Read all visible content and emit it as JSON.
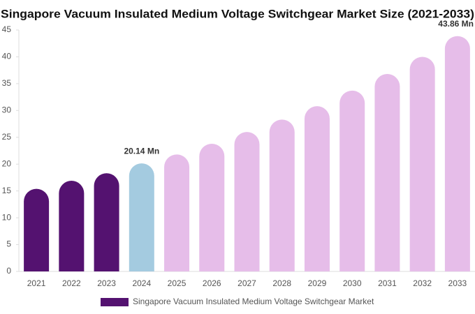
{
  "chart_data": {
    "type": "bar",
    "title": "Singapore Vacuum Insulated Medium Voltage Switchgear Market Size (2021-2033)",
    "categories": [
      "2021",
      "2022",
      "2023",
      "2024",
      "2025",
      "2026",
      "2027",
      "2028",
      "2029",
      "2030",
      "2031",
      "2032",
      "2033"
    ],
    "series": [
      {
        "name": "Singapore Vacuum Insulated Medium Voltage Switchgear Market",
        "color": "#541270",
        "colors": [
          "#541270",
          "#541270",
          "#541270",
          "#a4cbe0",
          "#e6bde9",
          "#e6bde9",
          "#e6bde9",
          "#e6bde9",
          "#e6bde9",
          "#e6bde9",
          "#e6bde9",
          "#e6bde9",
          "#e6bde9"
        ],
        "values": [
          15.4,
          16.9,
          18.3,
          20.14,
          21.8,
          23.8,
          26.0,
          28.3,
          30.8,
          33.7,
          36.8,
          40.0,
          43.86
        ],
        "value_labels": [
          null,
          null,
          null,
          "20.14 Mn",
          null,
          null,
          null,
          null,
          null,
          null,
          null,
          null,
          "43.86 Mn"
        ]
      }
    ],
    "ylim": [
      0,
      45
    ],
    "yticks": [
      0,
      5,
      10,
      15,
      20,
      25,
      30,
      35,
      40,
      45
    ],
    "grid": false,
    "legend": "bottom"
  }
}
